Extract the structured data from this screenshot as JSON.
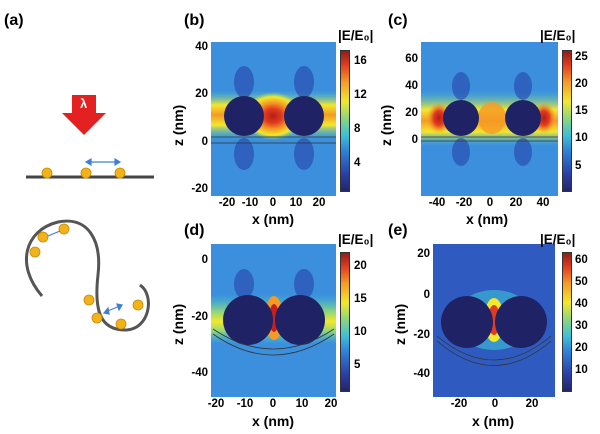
{
  "panel_labels": {
    "a": "(a)",
    "b": "(b)",
    "c": "(c)",
    "d": "(d)",
    "e": "(e)"
  },
  "schematic": {
    "wavelength_symbol": "λ"
  },
  "axis_titles": {
    "x": "x (nm)",
    "z": "z (nm)",
    "colorbar": "|E/E₀|"
  },
  "panels": {
    "b": {
      "z_ticks": [
        "40",
        "20",
        "0",
        "-20"
      ],
      "x_ticks": [
        "-20",
        "-10",
        "0",
        "10",
        "20"
      ],
      "cb_ticks": [
        "16",
        "12",
        "8",
        "4"
      ]
    },
    "c": {
      "z_ticks": [
        "60",
        "40",
        "20",
        "0"
      ],
      "x_ticks": [
        "-40",
        "-20",
        "0",
        "20",
        "40"
      ],
      "cb_ticks": [
        "25",
        "20",
        "15",
        "10",
        "5"
      ]
    },
    "d": {
      "z_ticks": [
        "0",
        "-20",
        "-40"
      ],
      "x_ticks": [
        "-20",
        "-10",
        "0",
        "10",
        "20"
      ],
      "cb_ticks": [
        "20",
        "15",
        "10",
        "5"
      ]
    },
    "e": {
      "z_ticks": [
        "20",
        "0",
        "-20",
        "-40"
      ],
      "x_ticks": [
        "-20",
        "0",
        "20"
      ],
      "cb_ticks": [
        "60",
        "50",
        "40",
        "30",
        "20",
        "10"
      ]
    }
  },
  "colors": {
    "arrow": "#e32121",
    "particle": "#f2b21a",
    "substrate": "#444444",
    "arrow_blue": "#3f7fd6",
    "sphere": "#1f2366"
  }
}
